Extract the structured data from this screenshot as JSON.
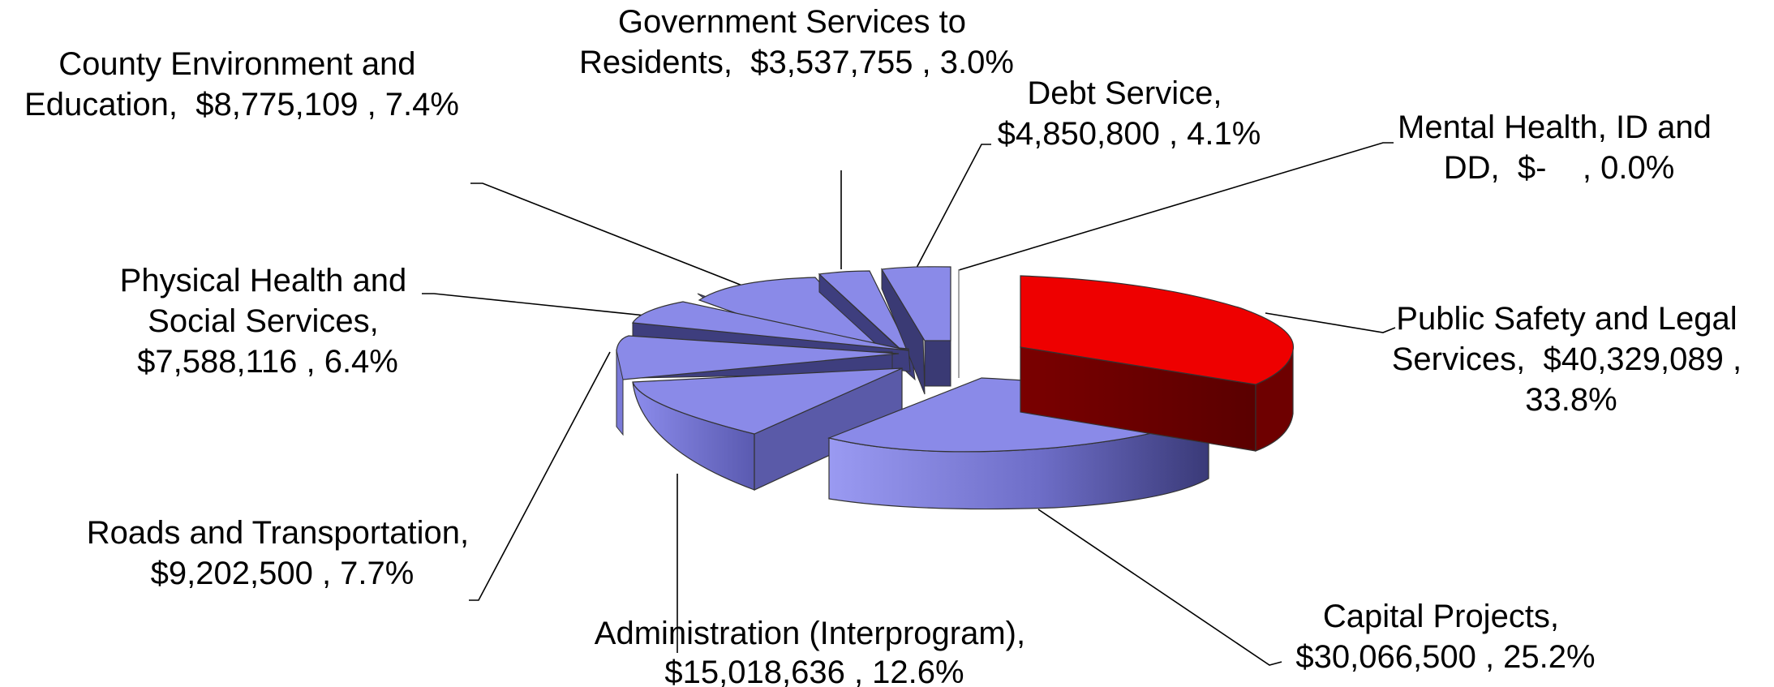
{
  "chart_data": {
    "type": "pie",
    "style": "3d-exploded",
    "slices": [
      {
        "name": "Public Safety and Legal Services",
        "value": 40329089,
        "value_label": "$40,329,089",
        "percent": 33.8,
        "percent_label": "33.8%",
        "color": "#ee0000",
        "side_color": "#6e0000"
      },
      {
        "name": "Capital Projects",
        "value": 30066500,
        "value_label": "$30,066,500",
        "percent": 25.2,
        "percent_label": "25.2%",
        "color": "#8a8ae8",
        "side_color": "#4a4a90"
      },
      {
        "name": "Administration (Interprogram)",
        "value": 15018636,
        "value_label": "$15,018,636",
        "percent": 12.6,
        "percent_label": "12.6%",
        "color": "#8a8ae8",
        "side_color": "#4a4a90"
      },
      {
        "name": "Roads and Transportation",
        "value": 9202500,
        "value_label": "$9,202,500",
        "percent": 7.7,
        "percent_label": "7.7%",
        "color": "#8a8ae8",
        "side_color": "#4a4a90"
      },
      {
        "name": "Physical Health and Social Services",
        "value": 7588116,
        "value_label": "$7,588,116",
        "percent": 6.4,
        "percent_label": "6.4%",
        "color": "#8a8ae8",
        "side_color": "#4a4a90"
      },
      {
        "name": "County Environment and Education",
        "value": 8775109,
        "value_label": "$8,775,109",
        "percent": 7.4,
        "percent_label": "7.4%",
        "color": "#8a8ae8",
        "side_color": "#4a4a90"
      },
      {
        "name": "Government Services to Residents",
        "value": 3537755,
        "value_label": "$3,537,755",
        "percent": 3.0,
        "percent_label": "3.0%",
        "color": "#8a8ae8",
        "side_color": "#4a4a90"
      },
      {
        "name": "Debt Service",
        "value": 4850800,
        "value_label": "$4,850,800",
        "percent": 4.1,
        "percent_label": "4.1%",
        "color": "#8a8ae8",
        "side_color": "#4a4a90"
      },
      {
        "name": "Mental Health, ID and DD",
        "value": 0,
        "value_label": "$-",
        "percent": 0.0,
        "percent_label": "0.0%",
        "color": "#ffffff",
        "side_color": "#ffffff"
      }
    ],
    "labels": [
      {
        "id": "public_safety",
        "lines": [
          "Public Safety and Legal",
          "Services,  $40,329,089 ,",
          "33.8%"
        ]
      },
      {
        "id": "capital",
        "lines": [
          "Capital Projects,",
          "$30,066,500 , 25.2%"
        ]
      },
      {
        "id": "administration",
        "lines": [
          "Administration (Interprogram),",
          "$15,018,636 , 12.6%"
        ]
      },
      {
        "id": "roads",
        "lines": [
          "Roads and Transportation,",
          "$9,202,500 , 7.7%"
        ]
      },
      {
        "id": "physical_health",
        "lines": [
          "Physical Health and",
          "Social Services,",
          "$7,588,116 , 6.4%"
        ]
      },
      {
        "id": "county_env",
        "lines": [
          "County Environment and",
          "Education,  $8,775,109 , 7.4%"
        ]
      },
      {
        "id": "gov_services",
        "lines": [
          "Government Services to",
          "Residents,  $3,537,755 , 3.0%"
        ]
      },
      {
        "id": "debt",
        "lines": [
          "Debt Service,",
          "$4,850,800 , 4.1%"
        ]
      },
      {
        "id": "mental_health",
        "lines": [
          "Mental Health, ID and",
          "DD,  $-    , 0.0%"
        ]
      }
    ]
  }
}
